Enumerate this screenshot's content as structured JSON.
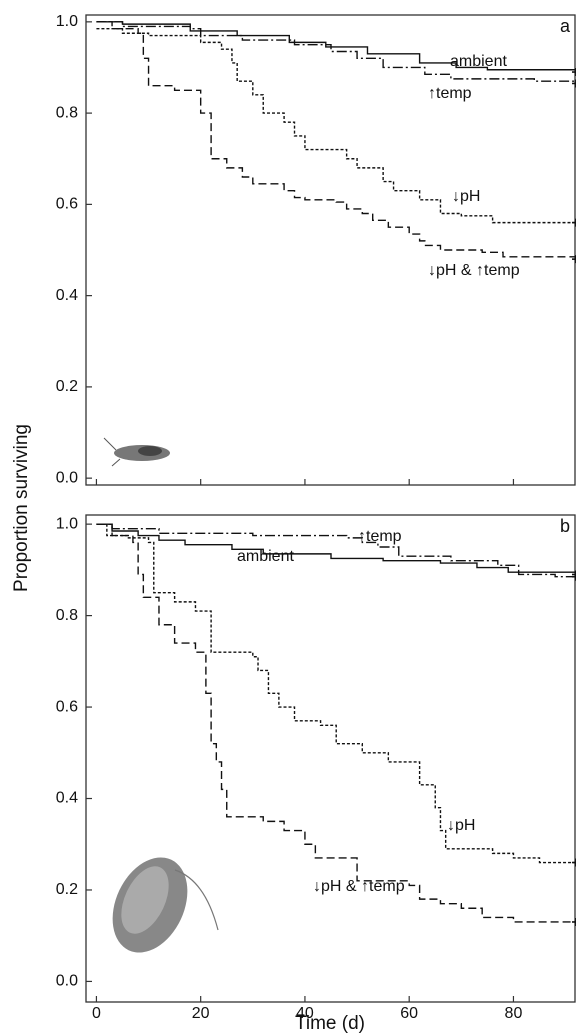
{
  "chart_data": [
    {
      "type": "step",
      "title": "a",
      "ylabel": "Proportion surviving",
      "xlim": [
        -2,
        92
      ],
      "xticks": [
        0,
        20,
        40,
        60,
        80
      ],
      "ylim": [
        -0.015,
        1.015
      ],
      "yticks": [
        {
          "value": 0,
          "label": "0.0"
        },
        0.2,
        0.4,
        0.6,
        0.8,
        {
          "value": 1,
          "label": "1.0"
        }
      ],
      "series": [
        {
          "name": "ambient",
          "color": "#111111",
          "dash": "solid",
          "x": [
            0,
            5,
            18,
            27,
            37,
            44,
            52,
            62,
            69,
            75,
            92
          ],
          "values": [
            1.0,
            0.995,
            0.98,
            0.97,
            0.955,
            0.945,
            0.93,
            0.91,
            0.9,
            0.895,
            0.89
          ]
        },
        {
          "name": "↑temp",
          "color": "#111111",
          "dash": "dashdot",
          "x": [
            0,
            5,
            18,
            20,
            28,
            38,
            45,
            50,
            55,
            63,
            68,
            84,
            92
          ],
          "values": [
            1.0,
            0.99,
            0.985,
            0.97,
            0.96,
            0.95,
            0.935,
            0.92,
            0.9,
            0.885,
            0.875,
            0.87,
            0.865
          ]
        },
        {
          "name": "↓pH",
          "color": "#111111",
          "dash": "dotted",
          "x": [
            0,
            5,
            10,
            20,
            24,
            26,
            27,
            30,
            32,
            36,
            38,
            40,
            48,
            50,
            55,
            57,
            62,
            66,
            70,
            76,
            92
          ],
          "values": [
            0.985,
            0.975,
            0.97,
            0.955,
            0.94,
            0.91,
            0.87,
            0.84,
            0.8,
            0.78,
            0.75,
            0.72,
            0.7,
            0.68,
            0.65,
            0.63,
            0.61,
            0.58,
            0.575,
            0.56,
            0.56
          ]
        },
        {
          "name": "↓pH & ↑temp",
          "color": "#111111",
          "dash": "dashed",
          "x": [
            0,
            3,
            8,
            9,
            10,
            15,
            20,
            22,
            25,
            28,
            30,
            36,
            38,
            40,
            46,
            48,
            51,
            53,
            56,
            60,
            62,
            63,
            66,
            74,
            78,
            92
          ],
          "values": [
            1.0,
            0.985,
            0.975,
            0.92,
            0.86,
            0.85,
            0.8,
            0.7,
            0.68,
            0.66,
            0.645,
            0.63,
            0.615,
            0.61,
            0.605,
            0.59,
            0.58,
            0.565,
            0.55,
            0.535,
            0.52,
            0.51,
            0.5,
            0.495,
            0.485,
            0.48
          ]
        }
      ]
    },
    {
      "type": "step",
      "title": "b",
      "xlabel": "Time (d)",
      "xlim": [
        -2,
        92
      ],
      "xticks": [
        0,
        20,
        40,
        60,
        80
      ],
      "ylim": [
        -0.045,
        1.02
      ],
      "yticks": [
        {
          "value": 0,
          "label": "0.0"
        },
        0.2,
        0.4,
        0.6,
        0.8,
        {
          "value": 1,
          "label": "1.0"
        }
      ],
      "series": [
        {
          "name": "ambient",
          "color": "#111111",
          "dash": "solid",
          "x": [
            0,
            3,
            8,
            12,
            17,
            26,
            32,
            45,
            55,
            66,
            73,
            79,
            92
          ],
          "values": [
            1.0,
            0.985,
            0.975,
            0.965,
            0.955,
            0.945,
            0.935,
            0.925,
            0.92,
            0.915,
            0.905,
            0.895,
            0.89
          ]
        },
        {
          "name": "↑temp",
          "color": "#111111",
          "dash": "dashdot",
          "x": [
            0,
            3,
            12,
            30,
            48,
            51,
            54,
            58,
            68,
            77,
            81,
            88,
            92
          ],
          "values": [
            1.0,
            0.99,
            0.98,
            0.975,
            0.97,
            0.96,
            0.95,
            0.93,
            0.92,
            0.91,
            0.89,
            0.885,
            0.885
          ]
        },
        {
          "name": "↓pH",
          "color": "#111111",
          "dash": "dotted",
          "x": [
            0,
            2,
            6,
            10,
            11,
            15,
            19,
            22,
            30,
            31,
            33,
            35,
            38,
            43,
            46,
            51,
            56,
            62,
            65,
            66,
            67,
            76,
            80,
            85,
            92
          ],
          "values": [
            1.0,
            0.975,
            0.97,
            0.96,
            0.85,
            0.83,
            0.81,
            0.72,
            0.71,
            0.68,
            0.63,
            0.6,
            0.57,
            0.56,
            0.52,
            0.5,
            0.48,
            0.43,
            0.38,
            0.33,
            0.29,
            0.28,
            0.27,
            0.26,
            0.26
          ]
        },
        {
          "name": "↓pH & ↑temp",
          "color": "#111111",
          "dash": "dashed",
          "x": [
            0,
            3,
            7,
            8,
            9,
            12,
            15,
            19,
            21,
            22,
            23,
            24,
            25,
            32,
            36,
            40,
            42,
            50,
            60,
            62,
            66,
            70,
            74,
            80,
            92
          ],
          "values": [
            1.0,
            0.975,
            0.96,
            0.89,
            0.84,
            0.78,
            0.74,
            0.72,
            0.63,
            0.52,
            0.48,
            0.42,
            0.36,
            0.35,
            0.33,
            0.3,
            0.27,
            0.22,
            0.21,
            0.18,
            0.17,
            0.16,
            0.14,
            0.13,
            0.13
          ]
        }
      ]
    }
  ]
}
